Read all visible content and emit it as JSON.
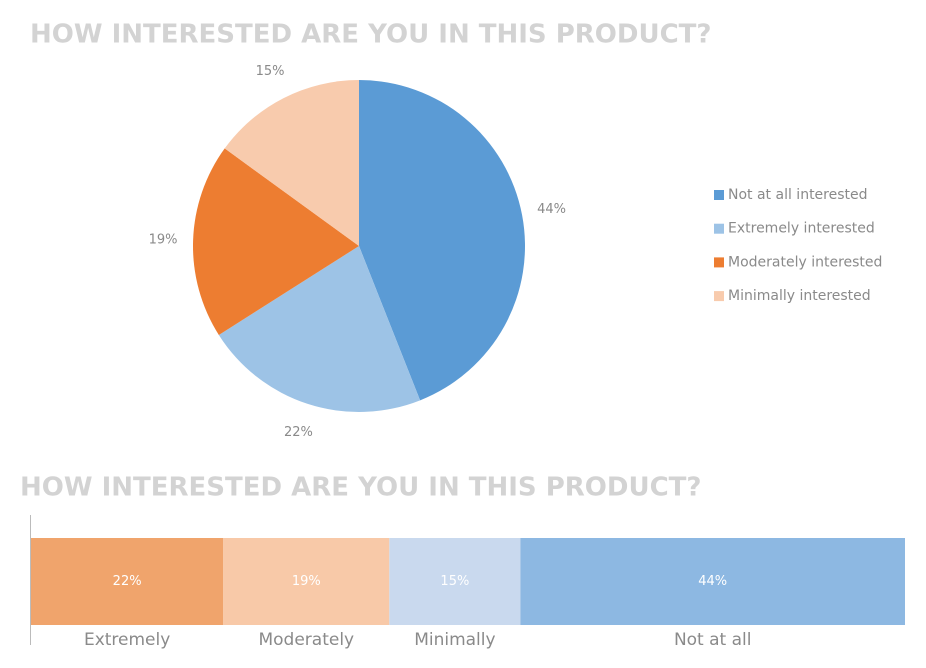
{
  "chart_data": [
    {
      "type": "pie",
      "title": "HOW INTERESTED ARE YOU IN THIS PRODUCT?",
      "categories": [
        "Not at all interested",
        "Extremely interested",
        "Moderately interested",
        "Minimally interested"
      ],
      "values": [
        44,
        22,
        19,
        15
      ],
      "value_labels": [
        "44%",
        "22%",
        "19%",
        "15%"
      ],
      "colors": [
        "#5b9bd5",
        "#9dc3e6",
        "#ed7d31",
        "#f8cbad"
      ],
      "legend": "right"
    },
    {
      "type": "stacked-bar",
      "title": "HOW INTERESTED ARE YOU IN THIS PRODUCT?",
      "series": [
        {
          "name": "Extremely",
          "color": "#f0a46c",
          "values": [
            22
          ],
          "value_labels": [
            "22%"
          ]
        },
        {
          "name": "Moderately",
          "color": "#f8c9a8",
          "values": [
            19
          ],
          "value_labels": [
            "19%"
          ]
        },
        {
          "name": "Minimally",
          "color": "#c9d9ee",
          "values": [
            15
          ],
          "value_labels": [
            "15%"
          ]
        },
        {
          "name": "Not at all",
          "color": "#8db8e2",
          "values": [
            44
          ],
          "value_labels": [
            "44%"
          ]
        }
      ]
    }
  ]
}
